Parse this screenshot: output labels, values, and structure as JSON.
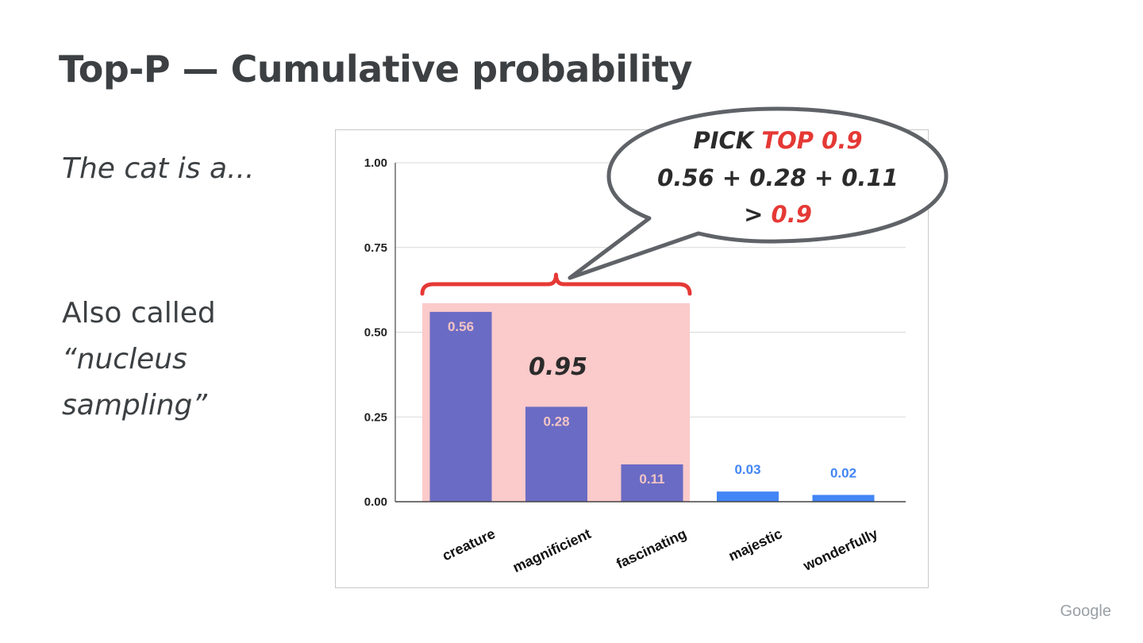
{
  "slide": {
    "title": "Top-P — Cumulative probability",
    "prompt": "The cat is a...",
    "aka_line1": "Also called",
    "aka_line2": "“nucleus",
    "aka_line3": "sampling”",
    "brand": "Google"
  },
  "callout": {
    "line1_prefix": "PICK ",
    "line1_highlight": "TOP 0.9",
    "line2": "0.56 + 0.28 + 0.11",
    "line3_prefix": "> ",
    "line3_highlight": "0.9",
    "highlight_color": "#e53935"
  },
  "chart_data": {
    "type": "bar",
    "categories": [
      "creature",
      "magnificient",
      "fascinating",
      "majestic",
      "wonderfully"
    ],
    "values": [
      0.56,
      0.28,
      0.11,
      0.03,
      0.02
    ],
    "value_labels": [
      "0.56",
      "0.28",
      "0.11",
      "0.03",
      "0.02"
    ],
    "ylim": [
      0,
      1.0
    ],
    "yticks": [
      "0.00",
      "0.25",
      "0.50",
      "0.75",
      "1.00"
    ],
    "grid": true,
    "colors": {
      "selected": "#6a6bc4",
      "unselected": "#4285f4",
      "selected_label": "#f3c4c4",
      "unselected_label": "#4285f4",
      "nucleus_fill": "#fbcaca",
      "bracket": "#e53935"
    },
    "selected_count": 3,
    "nucleus_sum_label": "0.95"
  }
}
